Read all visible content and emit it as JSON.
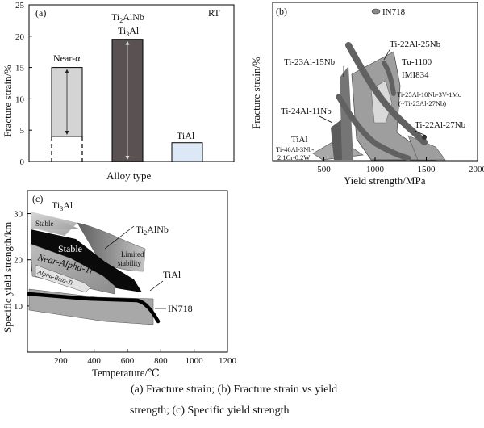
{
  "panels": {
    "a": {
      "letter": "(a)",
      "condition": "RT",
      "ylabel": "Fracture strain/%",
      "xlabel": "Alloy type",
      "yticks": [
        "0",
        "5",
        "10",
        "15",
        "20",
        "25"
      ],
      "bar_labels": [
        "Near-α",
        "Ti₂AlNb\nTi₃Al",
        "TiAl"
      ]
    },
    "b": {
      "letter": "(b)",
      "ylabel": "Fracture strain/%",
      "xlabel": "Yield strength/MPa",
      "xticks": [
        "500",
        "1000",
        "1500",
        "2000"
      ],
      "labels": {
        "in718": "IN718",
        "ti22al25nb": "Ti-22Al-25Nb",
        "ti23al15nb": "Ti-23Al-15Nb",
        "tu1100": "Tu-1100",
        "imi834": "IMI834",
        "ti25al_l1": "Ti-25Al-10Nb-3V-1Mo",
        "ti25al_l2": "(~Ti-25Al-27Nb)",
        "ti24al11nb": "Ti-24Al-11Nb",
        "ti22al27nb": "Ti-22Al-27Nb",
        "tial": "TiAl",
        "ti46_l1": "Ti-46Al-3Nb-",
        "ti46_l2": "2.1Cr-0.2W"
      }
    },
    "c": {
      "letter": "(c)",
      "ylabel": "Specific yield strength/km",
      "xlabel": "Temperature/℃",
      "xticks": [
        "200",
        "400",
        "600",
        "800",
        "1000",
        "1200"
      ],
      "yticks": [
        "10",
        "20",
        "30"
      ],
      "labels": {
        "ti3al": "Ti₃Al",
        "stable1": "Stable",
        "ti2alnb": "Ti₂AlNb",
        "stable2": "Stable",
        "limited1": "Limited",
        "limited2": "stability",
        "nearalpha": "Near-Alpha-Ti",
        "alphabeta": "Alpha-Beta-Ti",
        "tial": "TiAl",
        "in718": "IN718"
      }
    }
  },
  "caption": {
    "line1": "(a) Fracture strain; (b) Fracture strain vs yield",
    "line2": "strength; (c) Specific yield strength"
  },
  "chart_data": [
    {
      "type": "bar",
      "title": "",
      "ylabel": "Fracture strain/%",
      "xlabel": "Alloy type",
      "ylim": [
        0,
        25
      ],
      "categories": [
        "Near-α",
        "Ti₂AlNb/Ti₃Al",
        "TiAl"
      ],
      "ranges": [
        [
          4,
          15
        ],
        [
          0,
          19.5
        ],
        [
          0,
          3
        ]
      ],
      "colors": [
        "#d4d4d4",
        "#5a5252",
        "#dce8f6"
      ]
    },
    {
      "type": "scatter",
      "title": "",
      "xlabel": "Yield strength/MPa",
      "ylabel": "Fracture strain/%",
      "xlim": [
        0,
        2000
      ],
      "series": [
        {
          "name": "IN718"
        },
        {
          "name": "Ti-22Al-25Nb"
        },
        {
          "name": "Ti-23Al-15Nb"
        },
        {
          "name": "Tu-1100"
        },
        {
          "name": "IMI834"
        },
        {
          "name": "Ti-25Al-10Nb-3V-1Mo (~Ti-25Al-27Nb)"
        },
        {
          "name": "Ti-24Al-11Nb"
        },
        {
          "name": "Ti-22Al-27Nb"
        },
        {
          "name": "TiAl"
        },
        {
          "name": "Ti-46Al-3Nb-2.1Cr-0.2W"
        }
      ]
    },
    {
      "type": "area",
      "title": "",
      "xlabel": "Temperature/℃",
      "ylabel": "Specific yield strength/km",
      "xlim": [
        0,
        1200
      ],
      "ylim": [
        0,
        35
      ],
      "series": [
        {
          "name": "Ti₃Al",
          "x": [
            0,
            800
          ],
          "y_upper": [
            31,
            23
          ],
          "y_lower": [
            28,
            19
          ]
        },
        {
          "name": "Ti₂AlNb",
          "x": [
            0,
            700
          ],
          "y_upper": [
            28,
            16
          ],
          "y_lower": [
            19,
            14
          ]
        },
        {
          "name": "Near-Alpha-Ti",
          "x": [
            0,
            600
          ],
          "y_upper": [
            24,
            14
          ],
          "y_lower": [
            18,
            14
          ]
        },
        {
          "name": "Alpha-Beta-Ti",
          "x": [
            0,
            450
          ],
          "y_upper": [
            20,
            15
          ],
          "y_lower": [
            17,
            14
          ]
        },
        {
          "name": "TiAl",
          "x": [
            0,
            800
          ],
          "y_upper": [
            17,
            14
          ],
          "y_lower": [
            10,
            8
          ]
        },
        {
          "name": "IN718",
          "x": [
            0,
            800
          ],
          "y": [
            13,
            8
          ]
        }
      ]
    }
  ]
}
